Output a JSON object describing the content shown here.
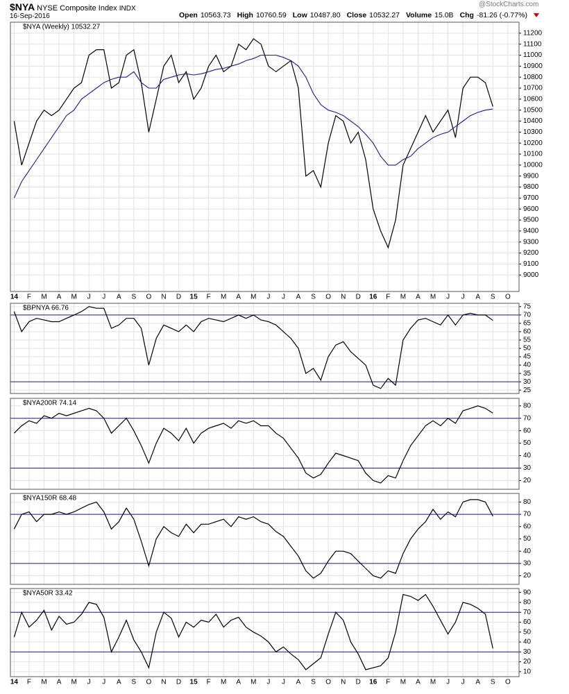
{
  "header": {
    "symbol": "$NYA",
    "name": "NYSE Composite Index",
    "exchange": "INDX",
    "date": "16-Sep-2016",
    "stats": [
      {
        "label": "Open",
        "value": "10563.73"
      },
      {
        "label": "High",
        "value": "10760.59"
      },
      {
        "label": "Low",
        "value": "10487.80"
      },
      {
        "label": "Close",
        "value": "10532.27"
      },
      {
        "label": "Volume",
        "value": "15.0B"
      },
      {
        "label": "Chg",
        "value": "-81.26 (-0.77%)"
      }
    ],
    "credit": "@StockCharts.com"
  },
  "chart_data": [
    {
      "type": "line",
      "title": "$NYA (Weekly) 10532.27",
      "grid": true,
      "categories": [
        "14",
        null,
        "F",
        null,
        "M",
        null,
        "A",
        null,
        "M",
        null,
        "J",
        null,
        "J",
        null,
        "A",
        null,
        "S",
        null,
        "O",
        null,
        "N",
        null,
        "D",
        null,
        "15",
        null,
        "F",
        null,
        "M",
        null,
        "A",
        null,
        "M",
        null,
        "J",
        null,
        "J",
        null,
        "A",
        null,
        "S",
        null,
        "O",
        null,
        "N",
        null,
        "D",
        null,
        "16",
        null,
        "F",
        null,
        "M",
        null,
        "A",
        null,
        "M",
        null,
        "J",
        null,
        "J",
        null,
        "A",
        null,
        "S",
        null,
        "O",
        null
      ],
      "ylim": [
        8850,
        11300
      ],
      "yticks": [
        9000,
        9100,
        9200,
        9300,
        9400,
        9500,
        9600,
        9700,
        9800,
        9900,
        10000,
        10100,
        10200,
        10300,
        10400,
        10500,
        10600,
        10700,
        10800,
        10900,
        11000,
        11100,
        11200
      ],
      "series": [
        {
          "color": "#000000",
          "values": [
            10400,
            10000,
            10200,
            10400,
            10500,
            10450,
            10500,
            10600,
            10700,
            10750,
            11000,
            11050,
            11050,
            10700,
            10750,
            11000,
            11050,
            10750,
            10300,
            10600,
            10900,
            11000,
            10750,
            10850,
            10600,
            10700,
            10900,
            11000,
            10850,
            10900,
            11100,
            11050,
            11150,
            11100,
            10900,
            10850,
            10900,
            10950,
            10700,
            9900,
            9950,
            9800,
            10200,
            10450,
            10400,
            10200,
            10300,
            10050,
            9600,
            9400,
            9250,
            9500,
            10000,
            10150,
            10300,
            10450,
            10300,
            10400,
            10500,
            10250,
            10700,
            10800,
            10800,
            10750,
            10532.27,
            null,
            null,
            null
          ]
        },
        {
          "color": "#1c1c8c",
          "values": [
            9700,
            9850,
            9950,
            10050,
            10150,
            10250,
            10350,
            10450,
            10500,
            10600,
            10650,
            10700,
            10750,
            10780,
            10800,
            10800,
            10850,
            10750,
            10700,
            10700,
            10780,
            10800,
            10820,
            10830,
            10820,
            10830,
            10850,
            10870,
            10880,
            10900,
            10920,
            10950,
            10970,
            11000,
            11000,
            11000,
            10980,
            10950,
            10900,
            10800,
            10650,
            10550,
            10500,
            10480,
            10450,
            10400,
            10350,
            10280,
            10200,
            10080,
            10000,
            10000,
            10050,
            10080,
            10150,
            10200,
            10250,
            10280,
            10300,
            10350,
            10400,
            10450,
            10480,
            10500,
            10510,
            null,
            null,
            null
          ]
        }
      ]
    },
    {
      "type": "line",
      "title": "$BPNYA 66.76",
      "grid": true,
      "ylim": [
        23,
        77
      ],
      "yticks": [
        25,
        30,
        35,
        40,
        45,
        50,
        55,
        60,
        65,
        70,
        75
      ],
      "hlines": [
        70,
        30
      ],
      "hline_color": "#1c1c8c",
      "series": [
        {
          "color": "#000000",
          "values": [
            72,
            60,
            66,
            68,
            67,
            66,
            66,
            68,
            70,
            72,
            75,
            74,
            74,
            62,
            64,
            68,
            68,
            62,
            40,
            56,
            64,
            62,
            60,
            64,
            60,
            66,
            68,
            67,
            66,
            68,
            70,
            68,
            70,
            67,
            66,
            64,
            60,
            56,
            50,
            35,
            38,
            31,
            45,
            52,
            54,
            48,
            44,
            40,
            28,
            26,
            32,
            28,
            55,
            62,
            67,
            68,
            66,
            64,
            70,
            64,
            70,
            71,
            70,
            70,
            66.76,
            null,
            null,
            null
          ]
        }
      ]
    },
    {
      "type": "line",
      "title": "$NYA200R 74.14",
      "grid": true,
      "ylim": [
        13,
        86
      ],
      "yticks": [
        20,
        30,
        40,
        50,
        60,
        70,
        80
      ],
      "hlines": [
        70,
        30
      ],
      "hline_color": "#1c1c8c",
      "series": [
        {
          "color": "#000000",
          "values": [
            58,
            64,
            68,
            66,
            72,
            70,
            74,
            72,
            74,
            76,
            78,
            76,
            70,
            58,
            64,
            70,
            60,
            48,
            34,
            50,
            62,
            58,
            52,
            62,
            50,
            58,
            62,
            64,
            66,
            62,
            68,
            66,
            68,
            64,
            64,
            58,
            54,
            46,
            38,
            26,
            22,
            25,
            34,
            42,
            40,
            38,
            36,
            26,
            20,
            18,
            24,
            22,
            36,
            48,
            56,
            64,
            68,
            64,
            70,
            66,
            76,
            78,
            80,
            78,
            74.14,
            null,
            null,
            null
          ]
        }
      ]
    },
    {
      "type": "line",
      "title": "$NYA150R 68.48",
      "grid": true,
      "ylim": [
        13,
        87
      ],
      "yticks": [
        20,
        30,
        40,
        50,
        60,
        70,
        80
      ],
      "hlines": [
        70,
        30
      ],
      "hline_color": "#1c1c8c",
      "series": [
        {
          "color": "#000000",
          "values": [
            58,
            70,
            72,
            64,
            70,
            70,
            72,
            70,
            72,
            75,
            78,
            80,
            72,
            58,
            64,
            75,
            66,
            48,
            28,
            50,
            60,
            55,
            52,
            62,
            55,
            62,
            62,
            64,
            66,
            60,
            68,
            66,
            68,
            64,
            62,
            56,
            52,
            44,
            36,
            24,
            18,
            22,
            32,
            40,
            40,
            38,
            32,
            26,
            20,
            18,
            24,
            22,
            38,
            50,
            58,
            64,
            74,
            66,
            72,
            68,
            80,
            82,
            82,
            80,
            68.48,
            null,
            null,
            null
          ]
        }
      ]
    },
    {
      "type": "line",
      "title": "$NYA50R 33.42",
      "grid": true,
      "categories": [
        "14",
        null,
        "F",
        null,
        "M",
        null,
        "A",
        null,
        "M",
        null,
        "J",
        null,
        "J",
        null,
        "A",
        null,
        "S",
        null,
        "O",
        null,
        "N",
        null,
        "D",
        null,
        "15",
        null,
        "F",
        null,
        "M",
        null,
        "A",
        null,
        "M",
        null,
        "J",
        null,
        "J",
        null,
        "A",
        null,
        "S",
        null,
        "O",
        null,
        "N",
        null,
        "D",
        null,
        "16",
        null,
        "F",
        null,
        "M",
        null,
        "A",
        null,
        "M",
        null,
        "J",
        null,
        "J",
        null,
        "A",
        null,
        "S",
        null,
        "O",
        null
      ],
      "ylim": [
        5,
        94
      ],
      "yticks": [
        10,
        20,
        30,
        40,
        50,
        60,
        70,
        80,
        90
      ],
      "hlines": [
        70,
        30
      ],
      "hline_color": "#1c1c8c",
      "series": [
        {
          "color": "#000000",
          "values": [
            45,
            70,
            55,
            62,
            72,
            52,
            66,
            58,
            60,
            68,
            80,
            78,
            65,
            30,
            45,
            62,
            42,
            30,
            14,
            50,
            70,
            64,
            45,
            60,
            55,
            62,
            60,
            68,
            55,
            62,
            65,
            55,
            50,
            46,
            40,
            30,
            35,
            28,
            22,
            12,
            18,
            24,
            48,
            70,
            62,
            40,
            28,
            12,
            14,
            16,
            24,
            50,
            88,
            86,
            82,
            88,
            76,
            62,
            48,
            60,
            80,
            78,
            74,
            68,
            33.42,
            null,
            null,
            null
          ]
        }
      ]
    }
  ]
}
